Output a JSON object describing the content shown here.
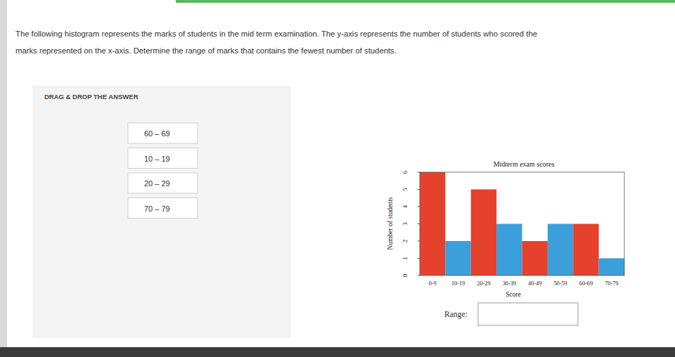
{
  "question_lines": [
    "The following histogram represents the marks of students in the mid term examination. The y-axis represents the number of students who scored the",
    "marks represented on the x-axis. Determine the range of marks that contains the fewest number of students."
  ],
  "instruction": "DRAG & DROP THE ANSWER",
  "options": [
    "60 – 69",
    "10 – 19",
    "20 – 29",
    "70 – 79"
  ],
  "answer_label": "Range:",
  "chart_data": {
    "type": "bar",
    "title": "Midterm exam scores",
    "x_label": "Score",
    "y_label": "Number of students",
    "categories": [
      "0-9",
      "10-19",
      "20-29",
      "30-39",
      "40-49",
      "50-59",
      "60-69",
      "70-79"
    ],
    "values": [
      6,
      2,
      5,
      3,
      2,
      3,
      3,
      1
    ],
    "colors": [
      "#e5412d",
      "#3b9fdb",
      "#e5412d",
      "#3b9fdb",
      "#e5412d",
      "#3b9fdb",
      "#e5412d",
      "#3b9fdb"
    ],
    "ylim": [
      0,
      6
    ],
    "yticks": [
      0,
      1,
      2,
      3,
      4,
      5,
      6
    ],
    "grid": false
  }
}
